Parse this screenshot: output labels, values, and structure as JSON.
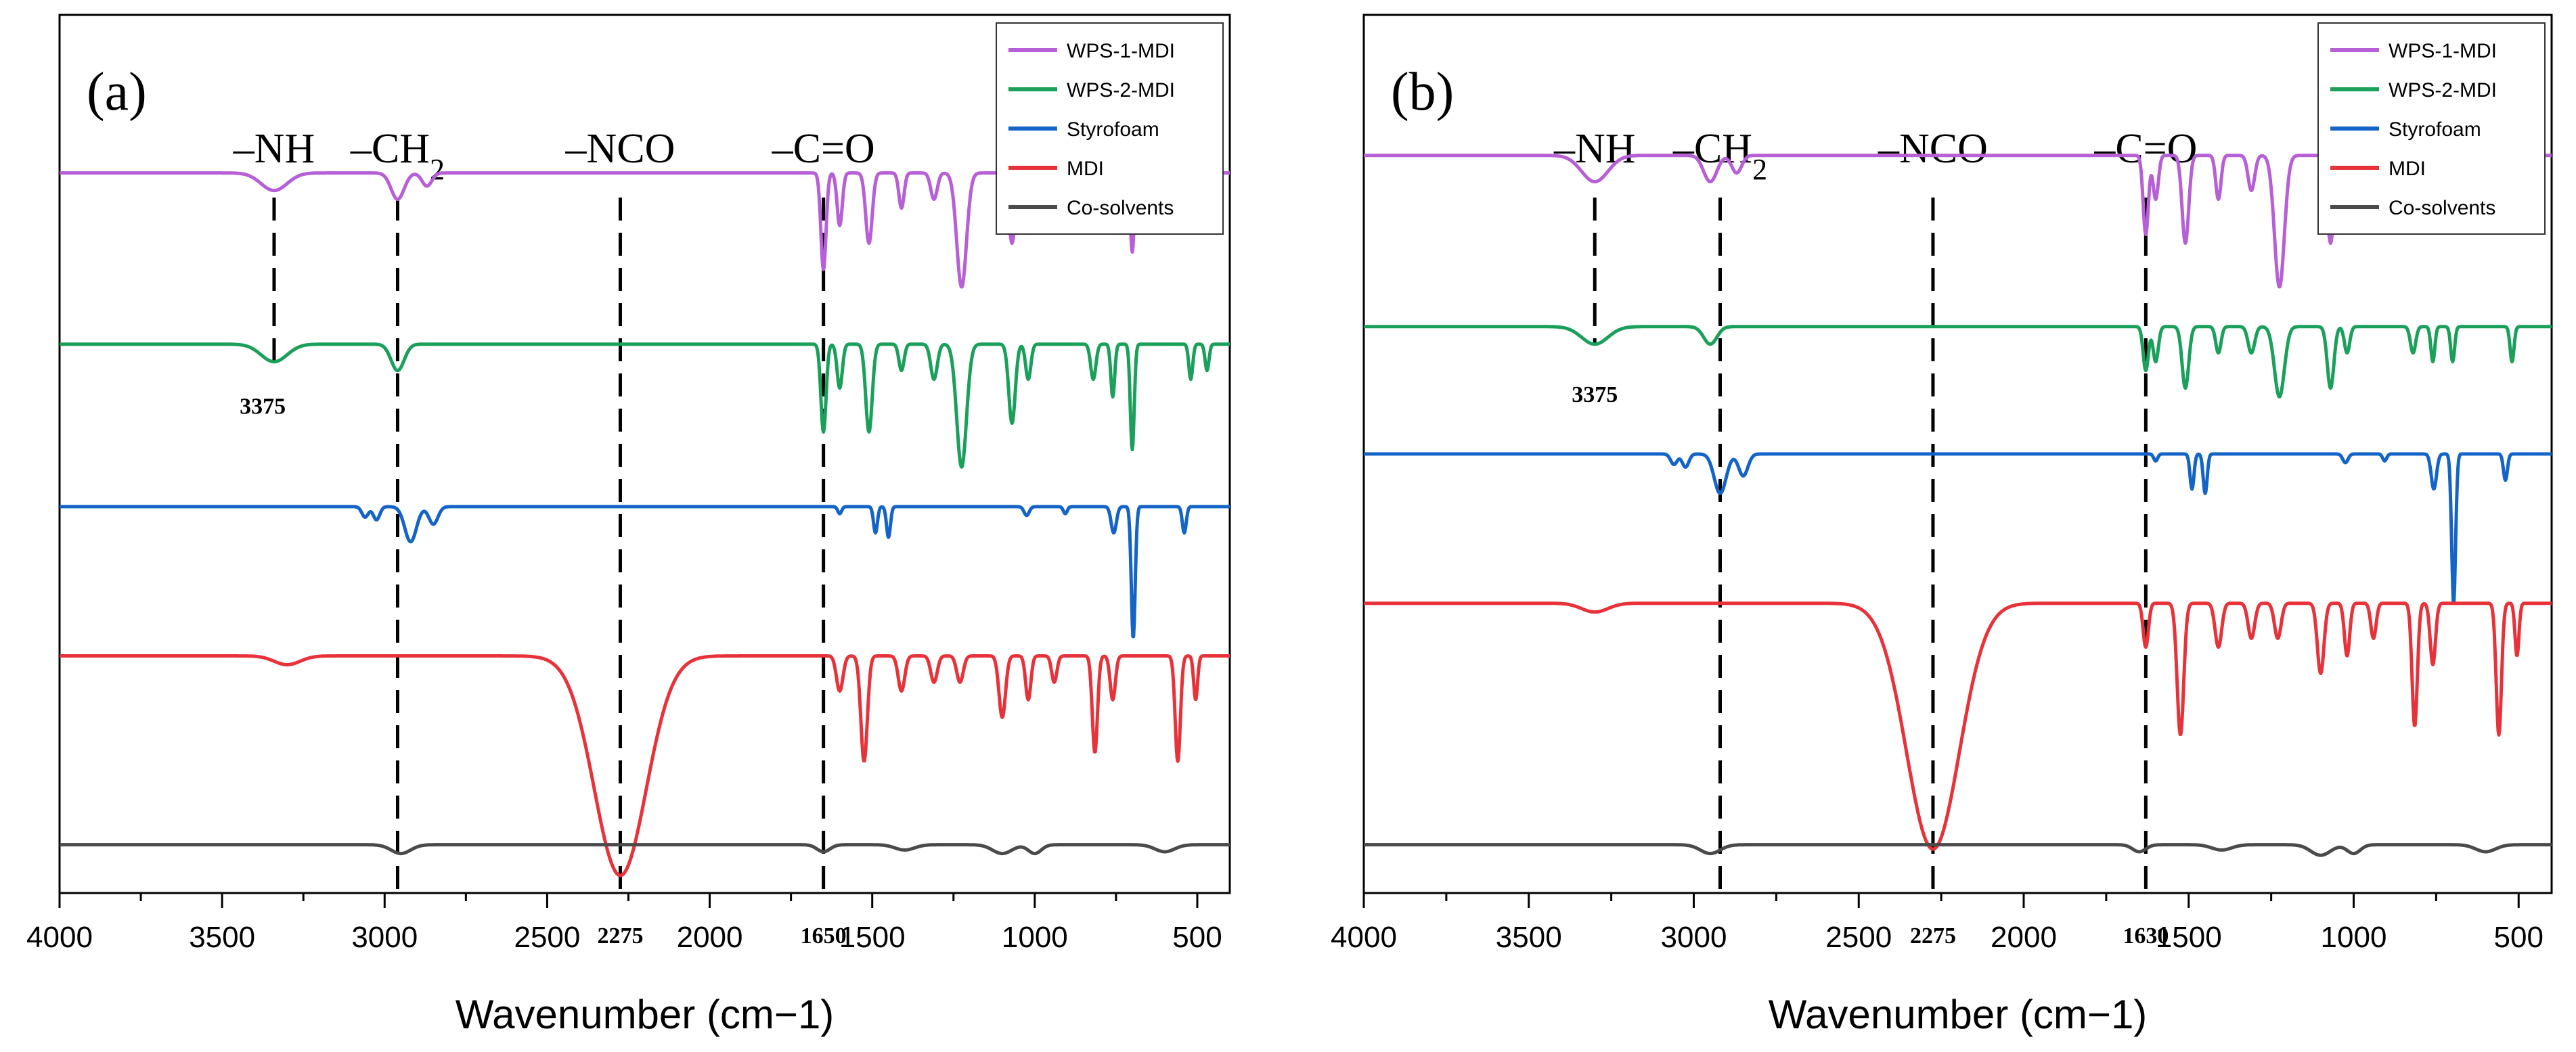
{
  "chart_data": [
    {
      "type": "line",
      "panel": "(a)",
      "xlabel": "Wavenumber (cm−1)",
      "xlim": [
        4000,
        400
      ],
      "x_reversed": true,
      "y_axis": "none",
      "xticks": [
        "4000",
        "3500",
        "3000",
        "2500",
        "2000",
        "1500",
        "1000",
        "500"
      ],
      "tick_values": [
        4000,
        3500,
        3000,
        2500,
        2000,
        1500,
        1000,
        500
      ],
      "legend": {
        "placement": "top-right",
        "entries": [
          "WPS-1-MDI",
          "WPS-2-MDI",
          "Styrofoam",
          "MDI",
          "Co-solvents"
        ]
      },
      "group_labels": [
        {
          "text": "–NH",
          "x": 3340
        },
        {
          "text": "–CH",
          "sub": "2",
          "x": 2960
        },
        {
          "text": "–NCO",
          "x": 2275
        },
        {
          "text": "–C=O",
          "x": 1650
        }
      ],
      "dashed_lines": [
        3340,
        2960,
        2275,
        1650
      ],
      "peak_labels": [
        {
          "text": "3375",
          "x": 3375,
          "series": "WPS-2-MDI"
        },
        {
          "text": "2275",
          "x": 2275,
          "axis": true
        },
        {
          "text": "1650",
          "x": 1650,
          "axis": true
        }
      ],
      "series": [
        {
          "name": "WPS-1-MDI",
          "color": "#b65fd6",
          "baseline": 0.82,
          "peaks": [
            [
              3340,
              0.02,
              40
            ],
            [
              2960,
              0.03,
              20
            ],
            [
              2870,
              0.015,
              15
            ],
            [
              1650,
              0.11,
              8
            ],
            [
              1600,
              0.06,
              8
            ],
            [
              1510,
              0.08,
              10
            ],
            [
              1410,
              0.04,
              8
            ],
            [
              1310,
              0.03,
              10
            ],
            [
              1225,
              0.13,
              15
            ],
            [
              1070,
              0.08,
              10
            ],
            [
              1020,
              0.04,
              8
            ],
            [
              940,
              0.03,
              8
            ],
            [
              820,
              0.04,
              8
            ],
            [
              760,
              0.05,
              6
            ],
            [
              700,
              0.09,
              6
            ],
            [
              520,
              0.04,
              6
            ]
          ]
        },
        {
          "name": "WPS-2-MDI",
          "color": "#1aa05a",
          "baseline": 0.625,
          "peaks": [
            [
              3340,
              0.02,
              40
            ],
            [
              2960,
              0.03,
              20
            ],
            [
              1650,
              0.1,
              8
            ],
            [
              1600,
              0.05,
              8
            ],
            [
              1510,
              0.1,
              10
            ],
            [
              1410,
              0.03,
              8
            ],
            [
              1310,
              0.04,
              10
            ],
            [
              1225,
              0.14,
              15
            ],
            [
              1070,
              0.09,
              10
            ],
            [
              1020,
              0.04,
              8
            ],
            [
              820,
              0.04,
              8
            ],
            [
              760,
              0.06,
              6
            ],
            [
              700,
              0.12,
              6
            ],
            [
              520,
              0.04,
              6
            ],
            [
              470,
              0.03,
              6
            ]
          ]
        },
        {
          "name": "Styrofoam",
          "color": "#1464c8",
          "baseline": 0.44,
          "peaks": [
            [
              3060,
              0.012,
              10
            ],
            [
              3025,
              0.015,
              10
            ],
            [
              2920,
              0.04,
              18
            ],
            [
              2850,
              0.02,
              14
            ],
            [
              1600,
              0.008,
              6
            ],
            [
              1490,
              0.03,
              6
            ],
            [
              1450,
              0.035,
              6
            ],
            [
              1025,
              0.01,
              8
            ],
            [
              906,
              0.008,
              6
            ],
            [
              757,
              0.03,
              8
            ],
            [
              697,
              0.15,
              6
            ],
            [
              540,
              0.03,
              6
            ]
          ]
        },
        {
          "name": "MDI",
          "color": "#e8323a",
          "baseline": 0.27,
          "peaks": [
            [
              3300,
              0.01,
              40
            ],
            [
              2275,
              0.25,
              80
            ],
            [
              1600,
              0.04,
              10
            ],
            [
              1525,
              0.12,
              10
            ],
            [
              1410,
              0.04,
              10
            ],
            [
              1310,
              0.03,
              10
            ],
            [
              1230,
              0.03,
              10
            ],
            [
              1100,
              0.07,
              10
            ],
            [
              1020,
              0.05,
              8
            ],
            [
              940,
              0.03,
              8
            ],
            [
              815,
              0.11,
              8
            ],
            [
              760,
              0.05,
              8
            ],
            [
              560,
              0.12,
              8
            ],
            [
              505,
              0.05,
              6
            ]
          ]
        },
        {
          "name": "Co-solvents",
          "color": "#4a4a4a",
          "baseline": 0.055,
          "peaks": [
            [
              2950,
              0.01,
              30
            ],
            [
              1650,
              0.008,
              20
            ],
            [
              1400,
              0.006,
              30
            ],
            [
              1100,
              0.01,
              30
            ],
            [
              1000,
              0.01,
              20
            ],
            [
              600,
              0.008,
              30
            ]
          ]
        }
      ]
    },
    {
      "type": "line",
      "panel": "(b)",
      "xlabel": "Wavenumber (cm−1)",
      "xlim": [
        4000,
        400
      ],
      "x_reversed": true,
      "y_axis": "none",
      "xticks": [
        "4000",
        "3500",
        "3000",
        "2500",
        "2000",
        "1500",
        "1000",
        "500"
      ],
      "tick_values": [
        4000,
        3500,
        3000,
        2500,
        2000,
        1500,
        1000,
        500
      ],
      "legend": {
        "placement": "top-right",
        "entries": [
          "WPS-1-MDI",
          "WPS-2-MDI",
          "Styrofoam",
          "MDI",
          "Co-solvents"
        ]
      },
      "group_labels": [
        {
          "text": "–NH",
          "x": 3300
        },
        {
          "text": "–CH",
          "sub": "2",
          "x": 2920
        },
        {
          "text": "–NCO",
          "x": 2275
        },
        {
          "text": "–C=O",
          "x": 1630
        }
      ],
      "dashed_lines": [
        3300,
        2920,
        2275,
        1630
      ],
      "peak_labels": [
        {
          "text": "3375",
          "x": 3300,
          "series": "WPS-2-MDI"
        },
        {
          "text": "2275",
          "x": 2275,
          "axis": true
        },
        {
          "text": "1630",
          "x": 1630,
          "axis": true
        }
      ],
      "series": [
        {
          "name": "WPS-1-MDI",
          "color": "#b65fd6",
          "baseline": 0.84,
          "peaks": [
            [
              3300,
              0.03,
              40
            ],
            [
              2950,
              0.03,
              20
            ],
            [
              2870,
              0.02,
              15
            ],
            [
              1630,
              0.09,
              8
            ],
            [
              1600,
              0.05,
              8
            ],
            [
              1510,
              0.1,
              10
            ],
            [
              1410,
              0.05,
              8
            ],
            [
              1310,
              0.04,
              10
            ],
            [
              1225,
              0.15,
              15
            ],
            [
              1070,
              0.1,
              10
            ],
            [
              1020,
              0.04,
              8
            ],
            [
              940,
              0.03,
              8
            ],
            [
              820,
              0.05,
              8
            ],
            [
              760,
              0.06,
              6
            ],
            [
              700,
              0.05,
              6
            ],
            [
              520,
              0.06,
              6
            ]
          ]
        },
        {
          "name": "WPS-2-MDI",
          "color": "#1aa05a",
          "baseline": 0.645,
          "peaks": [
            [
              3300,
              0.02,
              40
            ],
            [
              2950,
              0.02,
              20
            ],
            [
              1630,
              0.05,
              8
            ],
            [
              1600,
              0.04,
              8
            ],
            [
              1510,
              0.07,
              10
            ],
            [
              1410,
              0.03,
              8
            ],
            [
              1310,
              0.03,
              10
            ],
            [
              1225,
              0.08,
              15
            ],
            [
              1070,
              0.07,
              10
            ],
            [
              1020,
              0.03,
              8
            ],
            [
              820,
              0.03,
              8
            ],
            [
              760,
              0.04,
              6
            ],
            [
              700,
              0.04,
              6
            ],
            [
              520,
              0.04,
              6
            ]
          ]
        },
        {
          "name": "Styrofoam",
          "color": "#1464c8",
          "baseline": 0.5,
          "peaks": [
            [
              3060,
              0.012,
              10
            ],
            [
              3025,
              0.015,
              10
            ],
            [
              2920,
              0.045,
              18
            ],
            [
              2850,
              0.025,
              14
            ],
            [
              1600,
              0.008,
              6
            ],
            [
              1490,
              0.04,
              6
            ],
            [
              1450,
              0.045,
              6
            ],
            [
              1025,
              0.01,
              8
            ],
            [
              906,
              0.008,
              6
            ],
            [
              757,
              0.04,
              8
            ],
            [
              697,
              0.17,
              6
            ],
            [
              540,
              0.03,
              6
            ]
          ]
        },
        {
          "name": "MDI",
          "color": "#e8323a",
          "baseline": 0.33,
          "peaks": [
            [
              3300,
              0.01,
              40
            ],
            [
              2275,
              0.28,
              80
            ],
            [
              1630,
              0.05,
              8
            ],
            [
              1525,
              0.15,
              10
            ],
            [
              1410,
              0.05,
              10
            ],
            [
              1310,
              0.04,
              10
            ],
            [
              1230,
              0.04,
              10
            ],
            [
              1100,
              0.08,
              10
            ],
            [
              1020,
              0.06,
              8
            ],
            [
              940,
              0.04,
              8
            ],
            [
              815,
              0.14,
              8
            ],
            [
              760,
              0.07,
              8
            ],
            [
              560,
              0.15,
              8
            ],
            [
              505,
              0.06,
              6
            ]
          ]
        },
        {
          "name": "Co-solvents",
          "color": "#4a4a4a",
          "baseline": 0.055,
          "peaks": [
            [
              2950,
              0.01,
              30
            ],
            [
              1650,
              0.008,
              20
            ],
            [
              1400,
              0.006,
              30
            ],
            [
              1100,
              0.012,
              30
            ],
            [
              1000,
              0.01,
              20
            ],
            [
              600,
              0.008,
              30
            ]
          ]
        }
      ]
    }
  ]
}
